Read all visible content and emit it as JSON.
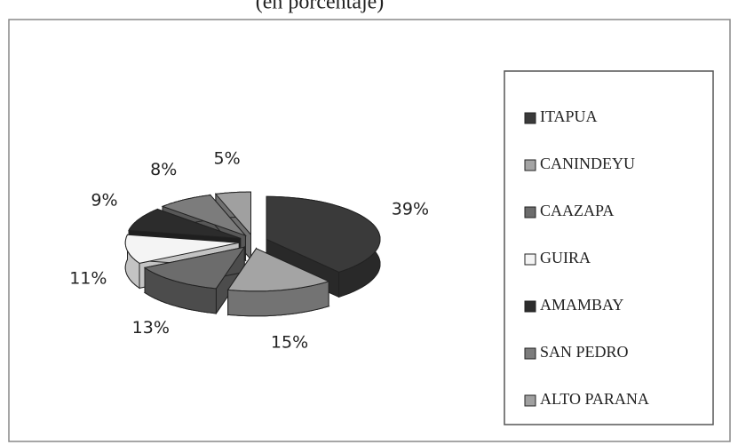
{
  "chart_data": {
    "type": "pie",
    "title": "(en porcentaje)",
    "categories": [
      "ITAPUA",
      "CANINDEYU",
      "CAAZAPA",
      "GUIRA",
      "AMAMBAY",
      "SAN PEDRO",
      "ALTO PARANA"
    ],
    "values": [
      39,
      15,
      13,
      11,
      9,
      8,
      5
    ],
    "value_labels": [
      "39%",
      "15%",
      "13%",
      "11%",
      "9%",
      "8%",
      "5%"
    ],
    "colors": [
      "#3a3a3a",
      "#a4a4a4",
      "#6c6c6c",
      "#f4f4f4",
      "#2c2c2c",
      "#7c7c7c",
      "#a0a0a0"
    ],
    "legend": "right"
  }
}
